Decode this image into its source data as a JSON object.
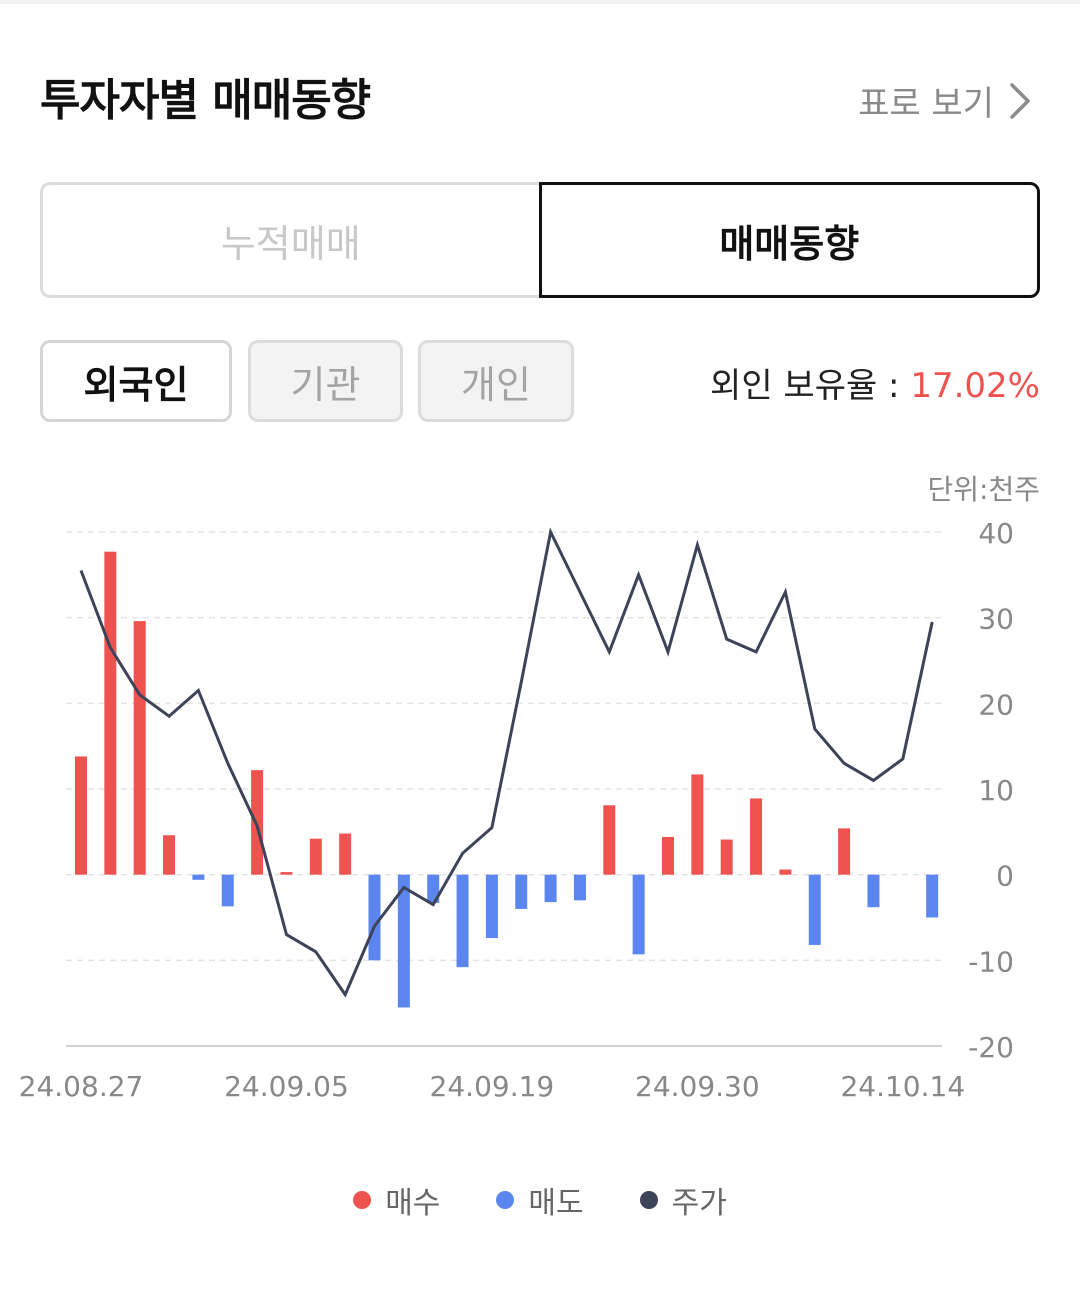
{
  "header": {
    "title": "투자자별 매매동향",
    "table_link": "표로 보기"
  },
  "segment": {
    "tabs": [
      "누적매매",
      "매매동향"
    ],
    "selected": "매매동향"
  },
  "investor_tabs": {
    "items": [
      "외국인",
      "기관",
      "개인"
    ],
    "selected": "외국인"
  },
  "holding": {
    "label": "외인 보유율 :",
    "value": "17.02%"
  },
  "unit_label": "단위:천주",
  "colors": {
    "buy": "#ef5350",
    "sell": "#5b86f0",
    "price": "#3d4358",
    "grid": "#e3e3e3",
    "axis_text": "#888888"
  },
  "chart_data": {
    "type": "bar",
    "ylim": [
      -20,
      40
    ],
    "yticks": [
      "40",
      "30",
      "20",
      "10",
      "0",
      "-10",
      "-20"
    ],
    "xtick_labels": [
      "24.08.27",
      "24.09.05",
      "24.09.19",
      "24.09.30",
      "24.10.14"
    ],
    "values": [
      13.8,
      37.7,
      29.6,
      4.6,
      -0.6,
      -3.7,
      12.2,
      0.3,
      4.2,
      4.8,
      -10.0,
      -15.5,
      -3.3,
      -10.8,
      -7.4,
      -4.0,
      -3.2,
      -3.0,
      8.1,
      -9.3,
      4.4,
      11.7,
      4.1,
      8.9,
      0.6,
      -8.2,
      5.4,
      -3.8,
      0.0,
      -5.0
    ],
    "price_series": [
      35.5,
      26.5,
      21.0,
      18.5,
      21.5,
      13.0,
      5.7,
      -7.0,
      -9.0,
      -14.0,
      -6.0,
      -1.5,
      -3.5,
      2.5,
      5.5,
      22.5,
      40.0,
      33.0,
      26.0,
      35.0,
      26.0,
      38.5,
      27.5,
      26.0,
      33.0,
      17.0,
      13.0,
      11.0,
      13.5,
      29.5
    ],
    "legend": [
      {
        "name": "매수",
        "color": "#ef5350"
      },
      {
        "name": "매도",
        "color": "#5b86f0"
      },
      {
        "name": "주가",
        "color": "#3d4358"
      }
    ],
    "grid": true
  }
}
